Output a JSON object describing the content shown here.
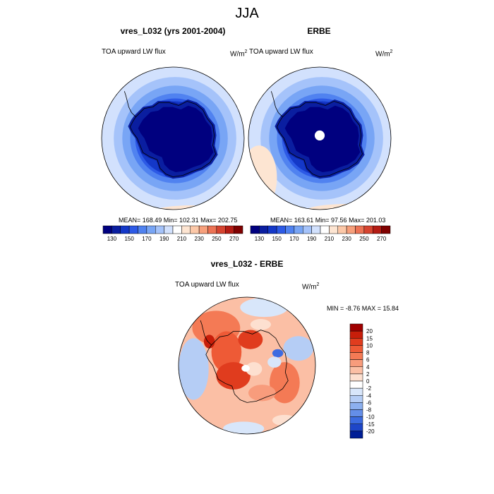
{
  "main_title": "JJA",
  "panels": [
    {
      "title": "vres_L032 (yrs 2001-2004)",
      "left_label": "TOA upward LW flux",
      "right_label": "W/m",
      "right_label_sup": "2",
      "stats": "MEAN= 168.49  Min= 102.31  Max= 202.75"
    },
    {
      "title": "ERBE",
      "left_label": "TOA upward LW flux",
      "right_label": "W/m",
      "right_label_sup": "2",
      "stats": "MEAN= 163.61  Min=  97.56  Max= 201.03"
    },
    {
      "title": "vres_L032 - ERBE",
      "left_label": "TOA upward LW flux",
      "right_label": "W/m",
      "right_label_sup": "2",
      "stats": "MIN =  -8.76 MAX =  15.84"
    }
  ],
  "chart_data": [
    {
      "type": "heatmap",
      "title": "vres_L032 (yrs 2001-2004)",
      "projection": "south polar stereographic",
      "field": "TOA upward LW flux",
      "units": "W/m2",
      "mean": 168.49,
      "min": 102.31,
      "max": 202.75,
      "colorbar": {
        "orientation": "horizontal",
        "levels": [
          130,
          140,
          150,
          160,
          170,
          180,
          190,
          200,
          210,
          220,
          230,
          240,
          250,
          260,
          270
        ],
        "tick_labels": [
          "130",
          "150",
          "170",
          "190",
          "210",
          "230",
          "250",
          "270"
        ],
        "colors": [
          "#00007f",
          "#0a1ea0",
          "#1438c8",
          "#2d5ae6",
          "#5082f0",
          "#78a5f5",
          "#a5c3fa",
          "#d2e1fd",
          "#ffffff",
          "#fde5d2",
          "#fcc8a8",
          "#f7a07c",
          "#ec7355",
          "#d64430",
          "#b41c14",
          "#7f0000"
        ]
      }
    },
    {
      "type": "heatmap",
      "title": "ERBE",
      "projection": "south polar stereographic",
      "field": "TOA upward LW flux",
      "units": "W/m2",
      "mean": 163.61,
      "min": 97.56,
      "max": 201.03,
      "colorbar": {
        "orientation": "horizontal",
        "levels": [
          130,
          140,
          150,
          160,
          170,
          180,
          190,
          200,
          210,
          220,
          230,
          240,
          250,
          260,
          270
        ],
        "tick_labels": [
          "130",
          "150",
          "170",
          "190",
          "210",
          "230",
          "250",
          "270"
        ],
        "colors": [
          "#00007f",
          "#0a1ea0",
          "#1438c8",
          "#2d5ae6",
          "#5082f0",
          "#78a5f5",
          "#a5c3fa",
          "#d2e1fd",
          "#ffffff",
          "#fde5d2",
          "#fcc8a8",
          "#f7a07c",
          "#ec7355",
          "#d64430",
          "#b41c14",
          "#7f0000"
        ]
      }
    },
    {
      "type": "heatmap",
      "title": "vres_L032 - ERBE",
      "projection": "south polar stereographic",
      "field": "TOA upward LW flux",
      "units": "W/m2",
      "min": -8.76,
      "max": 15.84,
      "colorbar": {
        "orientation": "vertical",
        "tick_labels": [
          "20",
          "15",
          "10",
          "8",
          "6",
          "4",
          "2",
          "0",
          "-2",
          "-4",
          "-6",
          "-8",
          "-10",
          "-15",
          "-20"
        ],
        "colors": [
          "#a00000",
          "#c81e0a",
          "#e03c1e",
          "#ee5a36",
          "#f47a55",
          "#f89c7c",
          "#fbbfa5",
          "#fde0d0",
          "#ffffff",
          "#d8e6fa",
          "#b5cdf5",
          "#8cb0ef",
          "#648ee8",
          "#3c6be0",
          "#1e46c8",
          "#001e96"
        ]
      }
    }
  ]
}
